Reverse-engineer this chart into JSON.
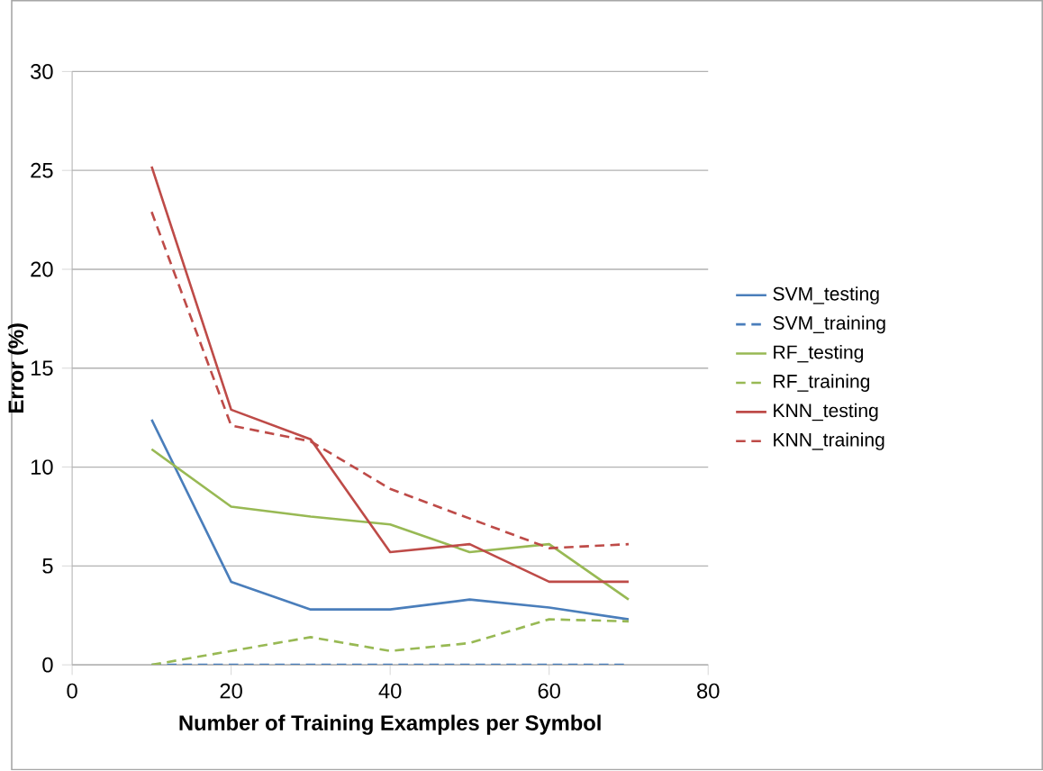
{
  "chart_data": {
    "type": "line",
    "xlabel": "Number of Training Examples per Symbol",
    "ylabel": "Error (%)",
    "x": [
      10,
      20,
      30,
      40,
      50,
      60,
      70
    ],
    "xlim": [
      0,
      80
    ],
    "xticks": [
      0,
      20,
      40,
      60,
      80
    ],
    "ylim": [
      0,
      30
    ],
    "yticks": [
      0,
      5,
      10,
      15,
      20,
      25,
      30
    ],
    "grid": "y",
    "legend": "right",
    "series": [
      {
        "name": "SVM_testing",
        "color": "#4a7ebb",
        "line_style": "solid",
        "values": [
          12.4,
          4.2,
          2.8,
          2.8,
          3.3,
          2.9,
          2.3
        ]
      },
      {
        "name": "SVM_training",
        "color": "#4a7ebb",
        "line_style": "dashed",
        "values": [
          0,
          0,
          0,
          0,
          0,
          0,
          0
        ]
      },
      {
        "name": "RF_testing",
        "color": "#98b954",
        "line_style": "solid",
        "values": [
          10.9,
          8.0,
          7.5,
          7.1,
          5.7,
          6.1,
          3.3
        ]
      },
      {
        "name": "RF_training",
        "color": "#98b954",
        "line_style": "dashed",
        "values": [
          0,
          0.7,
          1.4,
          0.7,
          1.1,
          2.3,
          2.2
        ]
      },
      {
        "name": "KNN_testing",
        "color": "#be4b48",
        "line_style": "solid",
        "values": [
          25.2,
          12.9,
          11.4,
          5.7,
          6.1,
          4.2,
          4.2
        ]
      },
      {
        "name": "KNN_training",
        "color": "#be4b48",
        "line_style": "dashed",
        "values": [
          22.9,
          12.1,
          11.3,
          8.9,
          7.4,
          5.9,
          6.1
        ]
      }
    ]
  }
}
